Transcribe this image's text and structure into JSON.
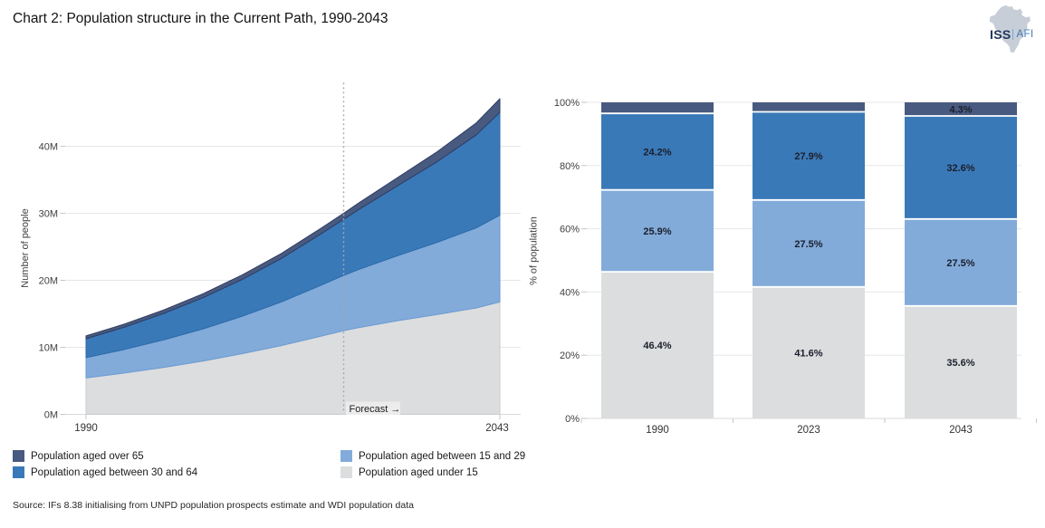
{
  "title": "Chart 2: Population structure in the Current Path, 1990-2043",
  "logo": {
    "iss": "ISS",
    "afi": "AFI"
  },
  "colors": {
    "under15": "#dcddde",
    "age15_29": "#82abda",
    "age30_64": "#3a79b8",
    "over65": "#485a80",
    "under15_edge": "#c9cbce",
    "age15_29_edge": "#6b9bd2",
    "age30_64_edge": "#2c6ba8",
    "over65_edge": "#2f3c63",
    "grid": "#e7e7e7",
    "baseline": "#d9d9d9",
    "tick": "#c6c6c6",
    "tick_text": "#3f3f3f",
    "forecast_line": "#a8a8a8",
    "forecast_bg": "#ececec",
    "bar_label_text": "#1b1f2c",
    "separator": "#ffffff"
  },
  "legend": {
    "items": [
      {
        "label": "Population aged over 65",
        "color_key": "over65"
      },
      {
        "label": "Population aged between 15 and 29",
        "color_key": "age15_29"
      },
      {
        "label": "Population aged between 30 and 64",
        "color_key": "age30_64"
      },
      {
        "label": "Population aged under 15",
        "color_key": "under15"
      }
    ]
  },
  "source": "Source: IFs 8.38 initialising from UNPD population prospects estimate and WDI population data",
  "chart_data": [
    {
      "type": "area",
      "stacked": true,
      "ylabel": "Number of people",
      "ylim": [
        0,
        50
      ],
      "grid": true,
      "x": [
        1990,
        1995,
        2000,
        2005,
        2010,
        2015,
        2020,
        2023,
        2025,
        2030,
        2035,
        2040,
        2043
      ],
      "x_ticks": [
        {
          "v": 1990,
          "label": "1990"
        },
        {
          "v": 2043,
          "label": "2043"
        }
      ],
      "yticks": [
        {
          "v": 0,
          "label": "0M"
        },
        {
          "v": 10,
          "label": "10M"
        },
        {
          "v": 20,
          "label": "20M"
        },
        {
          "v": 30,
          "label": "30M"
        },
        {
          "v": 40,
          "label": "40M"
        }
      ],
      "unit": "millions of people",
      "series": [
        {
          "name": "Population aged under 15",
          "key": "under15",
          "values": [
            5.43,
            6.17,
            7.01,
            7.96,
            9.05,
            10.26,
            11.64,
            12.48,
            12.96,
            13.98,
            14.9,
            15.88,
            16.77
          ]
        },
        {
          "name": "Population aged between 15 and 29",
          "key": "age15_29",
          "values": [
            3.03,
            3.53,
            4.12,
            4.79,
            5.59,
            6.51,
            7.58,
            8.25,
            8.69,
            9.74,
            10.78,
            11.96,
            12.95
          ]
        },
        {
          "name": "Population aged between 30 and 64",
          "key": "age30_64",
          "values": [
            2.83,
            3.34,
            3.95,
            4.66,
            5.5,
            6.48,
            7.64,
            8.37,
            8.97,
            10.46,
            12.04,
            13.88,
            15.35
          ]
        },
        {
          "name": "Population aged over 65",
          "key": "over65",
          "values": [
            0.41,
            0.46,
            0.52,
            0.59,
            0.66,
            0.75,
            0.84,
            0.9,
            0.98,
            1.22,
            1.48,
            1.78,
            2.03
          ]
        }
      ],
      "totals": [
        11.7,
        13.5,
        15.6,
        18.0,
        20.8,
        24.0,
        27.7,
        30.0,
        31.6,
        35.4,
        39.2,
        43.5,
        47.1
      ],
      "forecast": {
        "x": 2023,
        "label": "Forecast →"
      }
    },
    {
      "type": "bar",
      "stacked": true,
      "ylabel": "% of population",
      "ylim": [
        0,
        100
      ],
      "grid": true,
      "categories": [
        "1990",
        "2023",
        "2043"
      ],
      "yticks": [
        {
          "v": 0,
          "label": "0%"
        },
        {
          "v": 20,
          "label": "20%"
        },
        {
          "v": 40,
          "label": "40%"
        },
        {
          "v": 60,
          "label": "60%"
        },
        {
          "v": 80,
          "label": "80%"
        },
        {
          "v": 100,
          "label": "100%"
        }
      ],
      "series": [
        {
          "name": "Population aged under 15",
          "key": "under15",
          "values": [
            46.4,
            41.6,
            35.6
          ],
          "labels": [
            "46.4%",
            "41.6%",
            "35.6%"
          ]
        },
        {
          "name": "Population aged between 15 and 29",
          "key": "age15_29",
          "values": [
            25.9,
            27.5,
            27.5
          ],
          "labels": [
            "25.9%",
            "27.5%",
            "27.5%"
          ]
        },
        {
          "name": "Population aged between 30 and 64",
          "key": "age30_64",
          "values": [
            24.2,
            27.9,
            32.6
          ],
          "labels": [
            "24.2%",
            "27.9%",
            "32.6%"
          ]
        },
        {
          "name": "Population aged over 65",
          "key": "over65",
          "values": [
            3.5,
            3.0,
            4.3
          ],
          "labels": [
            "",
            "",
            "4.3%"
          ]
        }
      ]
    }
  ]
}
